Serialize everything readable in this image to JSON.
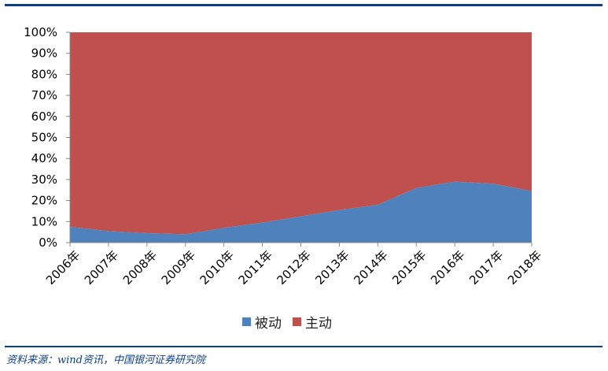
{
  "chart_data": {
    "type": "area",
    "stacked": true,
    "normalized": true,
    "x": [
      "2006年",
      "2007年",
      "2008年",
      "2009年",
      "2010年",
      "2011年",
      "2012年",
      "2013年",
      "2014年",
      "2015年",
      "2016年",
      "2017年",
      "2018年"
    ],
    "series": [
      {
        "name": "被动",
        "color": "#4f81bd",
        "values": [
          7.5,
          5.5,
          4.5,
          4,
          7,
          9.5,
          12.5,
          15.5,
          18,
          26,
          29,
          28,
          24.5
        ]
      },
      {
        "name": "主动",
        "color": "#c0504d",
        "values": [
          92.5,
          94.5,
          95.5,
          96,
          93,
          90.5,
          87.5,
          84.5,
          82,
          74,
          71,
          72,
          75.5
        ]
      }
    ],
    "y_ticks": [
      "0%",
      "10%",
      "20%",
      "30%",
      "40%",
      "50%",
      "60%",
      "70%",
      "80%",
      "90%",
      "100%"
    ],
    "ylim": [
      0,
      100
    ],
    "grid": false,
    "legend_position": "bottom"
  },
  "legend": {
    "items": [
      {
        "label": "被动",
        "color": "#4f81bd"
      },
      {
        "label": "主动",
        "color": "#c0504d"
      }
    ]
  },
  "source": "资料来源：wind资讯，中国银河证券研究院"
}
